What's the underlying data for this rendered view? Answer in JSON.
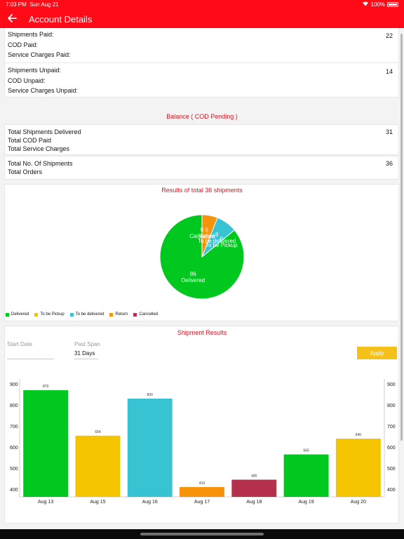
{
  "status_bar": {
    "time": "7:03 PM",
    "date": "Sun Aug 21",
    "battery": "100%"
  },
  "nav": {
    "title": "Account Details"
  },
  "paid": {
    "shipments_label": "Shipments Paid:",
    "shipments_value": "22",
    "cod_label": "COD Paid:",
    "service_label": "Service Charges Paid:"
  },
  "unpaid": {
    "shipments_label": "Shipments Unpaid:",
    "shipments_value": "14",
    "cod_label": "COD Unpaid:",
    "service_label": "Service Charges Unpaid:"
  },
  "balance": {
    "title": "Balance ( COD Pending )"
  },
  "delivered_summary": {
    "total_delivered_label": "Total Shipments Delivered",
    "total_delivered_value": "31",
    "total_cod_label": "Total COD Paid",
    "total_service_label": "Total Service Charges"
  },
  "orders_summary": {
    "total_shipments_label": "Total No. Of Shipments",
    "total_shipments_value": "36",
    "total_orders_label": "Total Orders"
  },
  "pie_title": "Results of total 36 shipments",
  "legend": [
    {
      "label": "Delivered",
      "color": "#00c81f"
    },
    {
      "label": "To be Pickup",
      "color": "#f5c400"
    },
    {
      "label": "To be delivered",
      "color": "#38c3d3"
    },
    {
      "label": "Return",
      "color": "#f7930a"
    },
    {
      "label": "Cancelled",
      "color": "#b5304b"
    }
  ],
  "shipment_results": {
    "title": "Shipment Results",
    "start_date_label": "Start Date",
    "past_span_label": "Past Span",
    "past_span_value": "31 Days",
    "apply_label": "Apply"
  },
  "chart_data": [
    {
      "type": "pie",
      "title": "Results of total 36 shipments",
      "slices": [
        {
          "label": "Delivered",
          "value": 86,
          "color": "#00c81f"
        },
        {
          "label": "To be Pickup",
          "value": 0,
          "color": "#f5c400"
        },
        {
          "label": "To be delivered",
          "value": 8,
          "color": "#38c3d3"
        },
        {
          "label": "Return",
          "value": 6,
          "color": "#f7930a"
        },
        {
          "label": "Cancelled",
          "value": 0,
          "color": "#b5304b"
        }
      ],
      "legend_position": "bottom-left"
    },
    {
      "type": "bar",
      "title": "Shipment Results",
      "categories": [
        "Aug 13",
        "Aug 15",
        "Aug 16",
        "Aug 17",
        "Aug 18",
        "Aug 19",
        "Aug 20"
      ],
      "values": [
        870,
        654,
        830,
        410,
        445,
        565,
        640
      ],
      "colors": [
        "#00c81f",
        "#f5c400",
        "#38c3d3",
        "#f7930a",
        "#b5304b",
        "#00c81f",
        "#f5c400"
      ],
      "ylim": [
        360,
        900
      ],
      "yticks": [
        400,
        500,
        600,
        700,
        800,
        900
      ],
      "grid": false
    }
  ]
}
